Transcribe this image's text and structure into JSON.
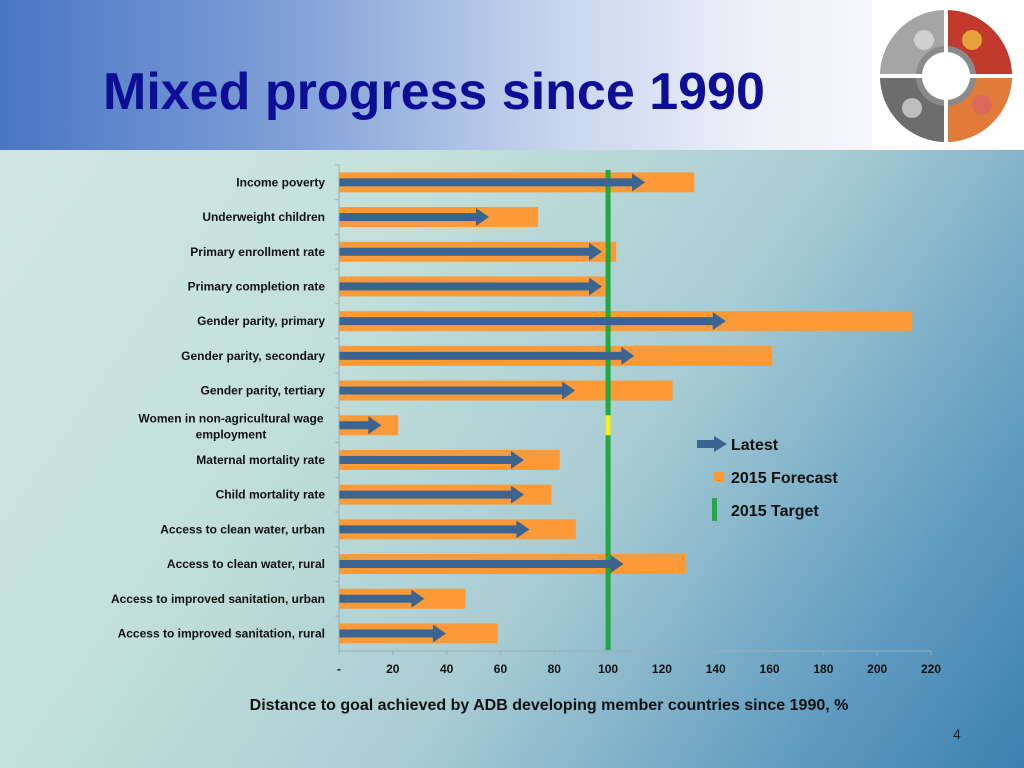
{
  "slide": {
    "title": "Mixed progress since 1990",
    "page_number": "4"
  },
  "colors": {
    "title": "#0d0d96",
    "forecast": "#fb9a36",
    "latest": "#3b6491",
    "target": "#1faa3f",
    "highlight": "#f2f21a"
  },
  "logo": {
    "icon": "photo-collage-circle-logo"
  },
  "chart_data": {
    "type": "bar",
    "orientation": "horizontal",
    "title": "",
    "xlabel": "Distance to goal achieved by ADB developing member countries since 1990, %",
    "ylabel": "",
    "xlim": [
      0,
      220
    ],
    "xticks": [
      0,
      20,
      40,
      60,
      80,
      100,
      120,
      140,
      160,
      180,
      200,
      220
    ],
    "xtick_labels": [
      "-",
      "20",
      "40",
      "60",
      "80",
      "100",
      "120",
      "140",
      "160",
      "180",
      "200",
      "220"
    ],
    "categories": [
      [
        "Income poverty"
      ],
      [
        "Underweight children"
      ],
      [
        "Primary enrollment rate"
      ],
      [
        "Primary completion rate"
      ],
      [
        "Gender parity, primary"
      ],
      [
        "Gender parity, secondary"
      ],
      [
        "Gender parity, tertiary"
      ],
      [
        "Women in non-agricultural wage",
        "employment"
      ],
      [
        "Maternal mortality rate"
      ],
      [
        "Child mortality rate"
      ],
      [
        "Access to clean water, urban"
      ],
      [
        "Access to clean water, rural"
      ],
      [
        "Access to improved sanitation, urban"
      ],
      [
        "Access to improved sanitation, rural"
      ]
    ],
    "series": [
      {
        "name": "2015 Forecast",
        "type": "bar",
        "values": [
          132,
          74,
          103,
          99,
          213,
          161,
          124,
          22,
          82,
          79,
          88,
          129,
          47,
          59
        ]
      },
      {
        "name": "Latest",
        "type": "arrow",
        "values": [
          113,
          55,
          97,
          97,
          143,
          109,
          87,
          15,
          68,
          68,
          70,
          105,
          31,
          39
        ]
      }
    ],
    "target": {
      "name": "2015 Target",
      "value": 100
    },
    "legend": {
      "position": "right",
      "entries": [
        "Latest",
        "2015 Forecast",
        "2015 Target"
      ]
    }
  }
}
